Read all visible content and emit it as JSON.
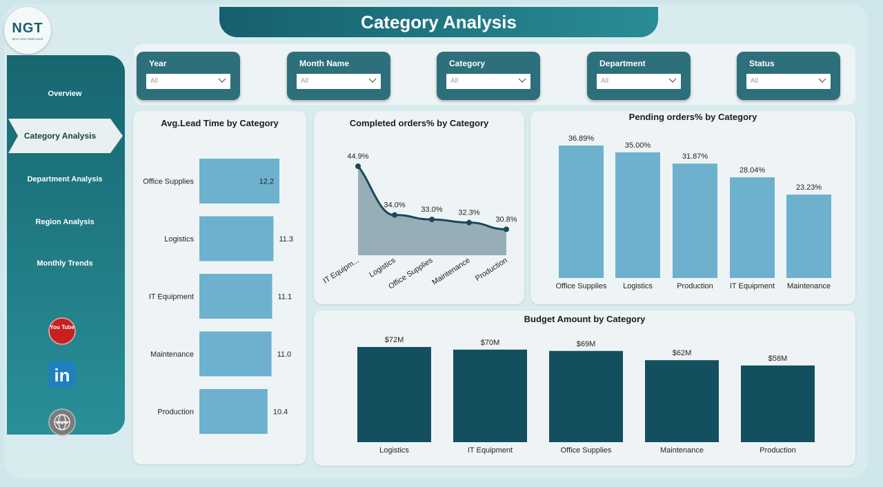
{
  "logo": {
    "text": "NGT",
    "subtitle": "NEXT GEN TEMPLATES"
  },
  "page_title": "Category Analysis",
  "nav": {
    "items": [
      {
        "label": "Overview",
        "active": false
      },
      {
        "label": "Category Analysis",
        "active": true
      },
      {
        "label": "Department Analysis",
        "active": false
      },
      {
        "label": "Region Analysis",
        "active": false
      },
      {
        "label": "Monthly Trends",
        "active": false
      }
    ],
    "social_icons": [
      "youtube-icon",
      "linkedin-icon",
      "website-globe-icon"
    ],
    "youtube_label": "You Tube",
    "linkedin_label": "in",
    "web_label": "WWW"
  },
  "filters": [
    {
      "label": "Year",
      "value": "All"
    },
    {
      "label": "Month Name",
      "value": "All"
    },
    {
      "label": "Category",
      "value": "All"
    },
    {
      "label": "Department",
      "value": "All"
    },
    {
      "label": "Status",
      "value": "All"
    }
  ],
  "colors": {
    "bar_light": "#6db1cf",
    "bar_dark": "#134f5f",
    "area_fill": "#97aeb6",
    "line": "#19485a",
    "accent": "#2d6f7a"
  },
  "chart_data": [
    {
      "id": "lead_time",
      "type": "bar",
      "orientation": "horizontal",
      "title": "Avg.Lead Time by Category",
      "categories": [
        "Office Supplies",
        "Logistics",
        "IT Equipment",
        "Maintenance",
        "Production"
      ],
      "values": [
        12.2,
        11.3,
        11.1,
        11.0,
        10.4
      ],
      "labels": [
        "12.2",
        "11.3",
        "11.1",
        "11.0",
        "10.4"
      ]
    },
    {
      "id": "completed",
      "type": "area",
      "title": "Completed orders% by Category",
      "categories": [
        "IT Equipm...",
        "Logistics",
        "Office Supplies",
        "Maintenance",
        "Production"
      ],
      "values": [
        44.9,
        34.0,
        33.0,
        32.3,
        30.8
      ],
      "labels": [
        "44.9%",
        "34.0%",
        "33.0%",
        "32.3%",
        "30.8%"
      ]
    },
    {
      "id": "pending",
      "type": "bar",
      "title": "Pending orders% by Category",
      "categories": [
        "Office Supplies",
        "Logistics",
        "Production",
        "IT Equipment",
        "Maintenance"
      ],
      "values": [
        36.89,
        35.0,
        31.87,
        28.04,
        23.23
      ],
      "labels": [
        "36.89%",
        "35.00%",
        "31.87%",
        "28.04%",
        "23.23%"
      ]
    },
    {
      "id": "budget",
      "type": "bar",
      "title": "Budget Amount by Category",
      "categories": [
        "Logistics",
        "IT Equipment",
        "Office Supplies",
        "Maintenance",
        "Production"
      ],
      "values": [
        72,
        70,
        69,
        62,
        58
      ],
      "labels": [
        "$72M",
        "$70M",
        "$69M",
        "$62M",
        "$58M"
      ]
    }
  ]
}
